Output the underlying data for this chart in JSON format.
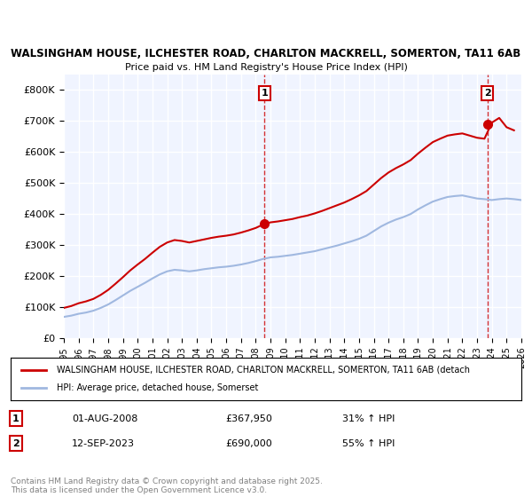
{
  "title_line1": "WALSINGHAM HOUSE, ILCHESTER ROAD, CHARLTON MACKRELL, SOMERTON, TA11 6AB",
  "title_line2": "Price paid vs. HM Land Registry's House Price Index (HPI)",
  "ylabel": "",
  "background_color": "#ffffff",
  "plot_bg_color": "#f0f4ff",
  "grid_color": "#ffffff",
  "hpi_color": "#a0b8e0",
  "price_color": "#cc0000",
  "marker_color": "#cc0000",
  "vline_color": "#cc0000",
  "ylim": [
    0,
    850000
  ],
  "yticks": [
    0,
    100000,
    200000,
    300000,
    400000,
    500000,
    600000,
    700000,
    800000
  ],
  "ytick_labels": [
    "£0",
    "£100K",
    "£200K",
    "£300K",
    "£400K",
    "£500K",
    "£600K",
    "£700K",
    "£800K"
  ],
  "sale1_date_idx": 13.6,
  "sale1_price": 367950,
  "sale1_label": "1",
  "sale1_date_str": "01-AUG-2008",
  "sale1_hpi_pct": "31% ↑ HPI",
  "sale2_date_idx": 28.7,
  "sale2_price": 690000,
  "sale2_label": "2",
  "sale2_date_str": "12-SEP-2023",
  "sale2_hpi_pct": "55% ↑ HPI",
  "legend_label1": "WALSINGHAM HOUSE, ILCHESTER ROAD, CHARLTON MACKRELL, SOMERTON, TA11 6AB (detach",
  "legend_label2": "HPI: Average price, detached house, Somerset",
  "footnote": "Contains HM Land Registry data © Crown copyright and database right 2025.\nThis data is licensed under the Open Government Licence v3.0.",
  "xlim": [
    0,
    31
  ],
  "xtick_years": [
    "1995",
    "1996",
    "1997",
    "1998",
    "1999",
    "2000",
    "2001",
    "2002",
    "2003",
    "2004",
    "2005",
    "2006",
    "2007",
    "2008",
    "2009",
    "2010",
    "2011",
    "2012",
    "2013",
    "2014",
    "2015",
    "2016",
    "2017",
    "2018",
    "2019",
    "2020",
    "2021",
    "2022",
    "2023",
    "2024",
    "2025",
    "2026"
  ]
}
